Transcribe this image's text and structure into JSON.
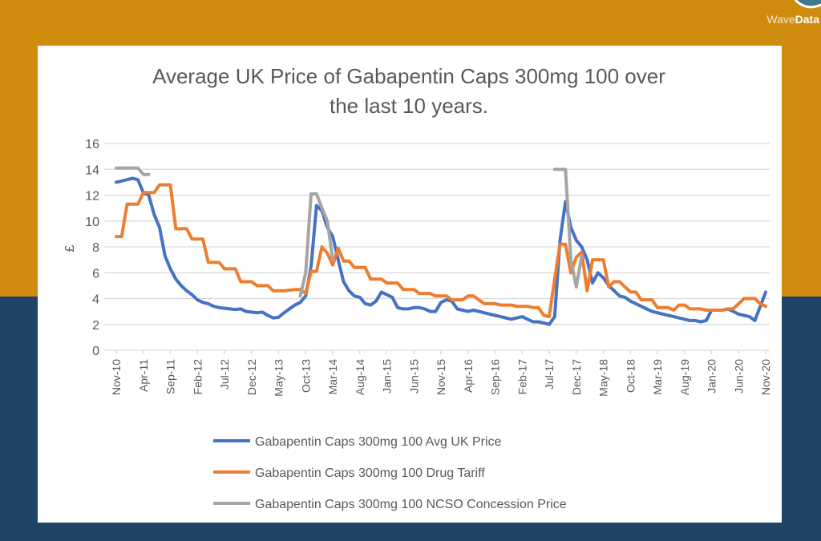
{
  "logo": {
    "text_light": "Wave",
    "text_bold": "Data"
  },
  "colors": {
    "background_top": "#D08C0C",
    "background_bottom": "#1F4466",
    "avg": "#4472C4",
    "tariff": "#ED7D31",
    "ncso": "#A5A5A5"
  },
  "chart_data": {
    "type": "line",
    "title_line1": "Average UK Price of Gabapentin Caps 300mg 100 over",
    "title_line2": "the last 10 years.",
    "xlabel": "",
    "ylabel": "£",
    "ylim": [
      0,
      16
    ],
    "yticks": [
      0,
      2,
      4,
      6,
      8,
      10,
      12,
      14,
      16
    ],
    "grid": true,
    "legend_position": "bottom",
    "x_start": "Nov-10",
    "x_end": "Nov-20",
    "x_tick_labels": [
      "Nov-10",
      "Apr-11",
      "Sep-11",
      "Feb-12",
      "Jul-12",
      "Dec-12",
      "May-13",
      "Oct-13",
      "Mar-14",
      "Aug-14",
      "Jan-15",
      "Jun-15",
      "Nov-15",
      "Apr-16",
      "Sep-16",
      "Feb-17",
      "Jul-17",
      "Dec-17",
      "May-18",
      "Oct-18",
      "Mar-19",
      "Aug-19",
      "Jan-20",
      "Jun-20",
      "Nov-20"
    ],
    "series": [
      {
        "name": "Gabapentin Caps 300mg 100 Avg UK Price",
        "color": "#4472C4",
        "values": [
          13.0,
          13.1,
          13.2,
          13.3,
          13.2,
          12.2,
          12.0,
          10.5,
          9.5,
          7.3,
          6.3,
          5.5,
          5.0,
          4.6,
          4.3,
          3.9,
          3.7,
          3.6,
          3.4,
          3.3,
          3.25,
          3.2,
          3.15,
          3.2,
          3.0,
          2.95,
          2.9,
          2.95,
          2.7,
          2.5,
          2.55,
          2.9,
          3.2,
          3.5,
          3.7,
          4.2,
          6.5,
          11.2,
          10.8,
          9.5,
          8.8,
          7.0,
          5.3,
          4.6,
          4.2,
          4.1,
          3.6,
          3.5,
          3.8,
          4.5,
          4.3,
          4.1,
          3.3,
          3.2,
          3.2,
          3.3,
          3.3,
          3.2,
          3.0,
          3.0,
          3.7,
          3.9,
          3.8,
          3.2,
          3.1,
          3.0,
          3.1,
          3.0,
          2.9,
          2.8,
          2.7,
          2.6,
          2.5,
          2.4,
          2.5,
          2.6,
          2.4,
          2.2,
          2.2,
          2.1,
          2.0,
          2.6,
          8.5,
          11.5,
          9.5,
          8.5,
          8.0,
          7.0,
          5.2,
          6.0,
          5.6,
          5.0,
          4.6,
          4.2,
          4.1,
          3.8,
          3.6,
          3.4,
          3.2,
          3.0,
          2.9,
          2.8,
          2.7,
          2.6,
          2.5,
          2.4,
          2.3,
          2.3,
          2.2,
          2.3,
          3.1,
          3.1,
          3.1,
          3.2,
          3.0,
          2.8,
          2.7,
          2.6,
          2.3,
          3.4,
          4.5
        ]
      },
      {
        "name": "Gabapentin Caps 300mg 100 Drug Tariff",
        "color": "#ED7D31",
        "values": [
          8.8,
          8.8,
          11.3,
          11.3,
          11.3,
          12.2,
          12.2,
          12.2,
          12.8,
          12.8,
          12.8,
          9.4,
          9.4,
          9.4,
          8.6,
          8.6,
          8.6,
          6.8,
          6.8,
          6.8,
          6.3,
          6.3,
          6.3,
          5.3,
          5.3,
          5.3,
          5.0,
          5.0,
          5.0,
          4.6,
          4.6,
          4.6,
          4.65,
          4.7,
          4.7,
          4.4,
          6.1,
          6.1,
          8.0,
          7.5,
          6.6,
          7.9,
          6.9,
          6.9,
          6.4,
          6.4,
          6.4,
          5.5,
          5.5,
          5.5,
          5.2,
          5.2,
          5.2,
          4.7,
          4.7,
          4.7,
          4.4,
          4.4,
          4.4,
          4.2,
          4.2,
          4.2,
          3.9,
          3.9,
          3.9,
          4.2,
          4.2,
          3.9,
          3.6,
          3.6,
          3.6,
          3.5,
          3.5,
          3.5,
          3.4,
          3.4,
          3.4,
          3.3,
          3.3,
          2.7,
          2.6,
          5.5,
          8.2,
          8.2,
          6.0,
          7.2,
          7.6,
          4.6,
          7.0,
          7.0,
          7.0,
          4.9,
          5.3,
          5.3,
          4.9,
          4.5,
          4.5,
          3.9,
          3.9,
          3.9,
          3.3,
          3.3,
          3.3,
          3.1,
          3.5,
          3.5,
          3.2,
          3.2,
          3.2,
          3.1,
          3.1,
          3.1,
          3.1,
          3.2,
          3.2,
          3.6,
          4.0,
          4.0,
          4.0,
          3.6,
          3.4
        ]
      },
      {
        "name": "Gabapentin Caps 300mg 100 NCSO Concession Price",
        "color": "#A5A5A5",
        "values": [
          14.1,
          14.1,
          14.1,
          14.1,
          14.1,
          13.6,
          13.6,
          null,
          null,
          null,
          null,
          null,
          null,
          null,
          null,
          null,
          null,
          null,
          null,
          null,
          null,
          null,
          null,
          null,
          null,
          null,
          null,
          null,
          null,
          null,
          null,
          null,
          null,
          null,
          4.2,
          6.0,
          12.1,
          12.1,
          11.0,
          10.0,
          7.0,
          null,
          null,
          null,
          null,
          null,
          null,
          null,
          null,
          null,
          null,
          null,
          null,
          null,
          null,
          null,
          null,
          null,
          null,
          null,
          null,
          null,
          null,
          null,
          null,
          null,
          null,
          null,
          null,
          null,
          null,
          null,
          null,
          null,
          null,
          null,
          null,
          null,
          null,
          null,
          null,
          14.0,
          14.0,
          14.0,
          7.0,
          4.9,
          7.3,
          null,
          null,
          null,
          null,
          null,
          null,
          null,
          null,
          null,
          null,
          null,
          null,
          null,
          null,
          null,
          null,
          null,
          null,
          null,
          null,
          null,
          null,
          null,
          null,
          null,
          null,
          null,
          null,
          null,
          null,
          null,
          null,
          null,
          null,
          null,
          null
        ]
      }
    ]
  }
}
